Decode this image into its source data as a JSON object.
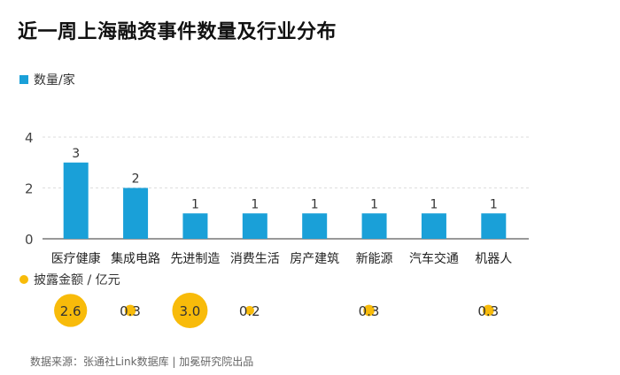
{
  "title": "近一周上海融资事件数量及行业分布",
  "source": "数据来源：张通社Link数据库 | 加冕研究院出品",
  "colors": {
    "bar": "#1aa0d8",
    "bubble": "#f8bb0a",
    "grid": "#dddddd"
  },
  "chart_data": [
    {
      "type": "bar",
      "legend": "数量/家",
      "categories": [
        "医疗健康",
        "集成电路",
        "先进制造",
        "消费生活",
        "房产建筑",
        "新能源",
        "汽车交通",
        "机器人"
      ],
      "values": [
        3,
        2,
        1,
        1,
        1,
        1,
        1,
        1
      ],
      "yticks": [
        0,
        2,
        4
      ],
      "ylim": [
        0,
        4
      ],
      "grid": true
    },
    {
      "type": "scatter",
      "legend": "披露金额 / 亿元",
      "categories": [
        "医疗健康",
        "集成电路",
        "先进制造",
        "消费生活",
        "房产建筑",
        "新能源",
        "汽车交通",
        "机器人"
      ],
      "values": [
        2.6,
        0.3,
        3.0,
        0.2,
        null,
        0.3,
        null,
        0.3
      ],
      "labels": [
        "2.6",
        "0.3",
        "3.0",
        "0.2",
        "",
        "0.3",
        "",
        "0.3"
      ]
    }
  ]
}
